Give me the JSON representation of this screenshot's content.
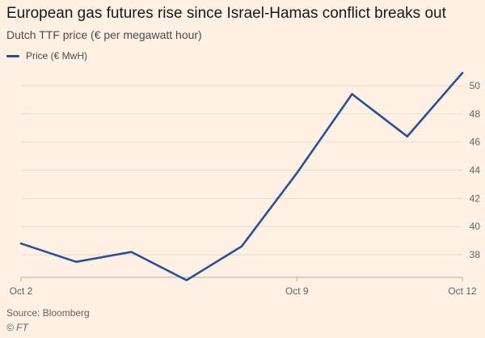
{
  "colors": {
    "background": "#fff1e5",
    "line": "#2e4f8f",
    "grid": "#e6d9ce",
    "axis": "#b8aca2"
  },
  "source": "Source: Bloomberg",
  "credit": "© FT",
  "chart_data": {
    "type": "line",
    "title": "European gas futures rise since Israel-Hamas conflict breaks out",
    "subtitle": "Dutch TTF price (€ per megawatt hour)",
    "xlabel": "",
    "ylabel": "",
    "x_tick_labels": [
      "Oct 2",
      "Oct 9",
      "Oct 12"
    ],
    "x_tick_positions": [
      0,
      5,
      8
    ],
    "y_ticks": [
      38,
      40,
      42,
      44,
      46,
      48,
      50
    ],
    "ylim": [
      36.4,
      51.6
    ],
    "grid": true,
    "legend_position": "top-left",
    "series": [
      {
        "name": "Price (€ MwH)",
        "color": "#2e4f8f",
        "x": [
          0,
          1,
          2,
          3,
          4,
          5,
          6,
          7,
          8
        ],
        "values": [
          38.8,
          37.5,
          38.2,
          36.2,
          38.6,
          43.8,
          49.4,
          46.4,
          50.9
        ]
      }
    ]
  }
}
